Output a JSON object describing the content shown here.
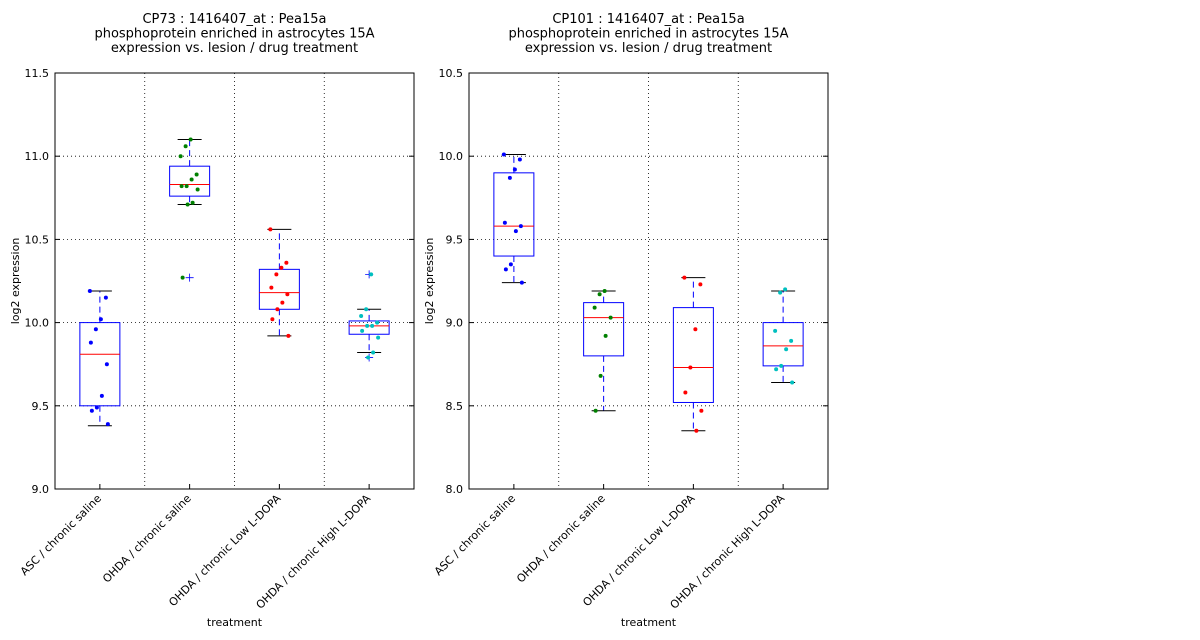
{
  "charts": [
    {
      "chart_data": {
        "type": "box",
        "title": [
          "CP73 : 1416407_at : Pea15a",
          "phosphoprotein enriched in astrocytes 15A",
          "expression vs. lesion / drug treatment"
        ],
        "xlabel": "treatment",
        "ylabel": "log2 expression",
        "categories": [
          "ASC / chronic saline",
          "OHDA / chronic saline",
          "OHDA / chronic Low L-DOPA",
          "OHDA / chronic High L-DOPA"
        ],
        "ylim": [
          9,
          11.5
        ],
        "yticks": [
          {
            "value": 9,
            "label": "9.0"
          },
          9.5,
          {
            "value": 10,
            "label": "10.0"
          },
          10.5,
          {
            "value": 11,
            "label": "11.0"
          },
          11.5
        ],
        "grid": true,
        "box_color": "#0000ff",
        "median_color": "#ff0000",
        "point_colors": [
          "#0000ff",
          "#008000",
          "#ff0000",
          "#00bfbf"
        ],
        "boxes": [
          {
            "whislo": 9.38,
            "q1": 9.5,
            "med": 9.81,
            "q3": 10.0,
            "whishi": 10.19,
            "fliers": []
          },
          {
            "whislo": 10.71,
            "q1": 10.76,
            "med": 10.83,
            "q3": 10.94,
            "whishi": 11.1,
            "fliers": [
              10.27
            ]
          },
          {
            "whislo": 9.92,
            "q1": 10.08,
            "med": 10.18,
            "q3": 10.32,
            "whishi": 10.56,
            "fliers": []
          },
          {
            "whislo": 9.82,
            "q1": 9.93,
            "med": 9.98,
            "q3": 10.01,
            "whishi": 10.08,
            "fliers": [
              10.29,
              9.79
            ]
          }
        ],
        "points": [
          [
            10.19,
            10.15,
            10.02,
            9.96,
            9.88,
            9.75,
            9.56,
            9.49,
            9.47,
            9.39
          ],
          [
            11.1,
            11.06,
            11.0,
            10.89,
            10.86,
            10.82,
            10.82,
            10.8,
            10.72,
            10.71,
            10.27
          ],
          [
            10.56,
            10.36,
            10.33,
            10.29,
            10.21,
            10.17,
            10.12,
            10.08,
            10.02,
            9.92
          ],
          [
            10.29,
            10.08,
            10.04,
            10.0,
            9.98,
            9.98,
            9.95,
            9.91,
            9.82,
            9.79
          ]
        ]
      }
    },
    {
      "chart_data": {
        "type": "box",
        "title": [
          "CP101 : 1416407_at : Pea15a",
          "phosphoprotein enriched in astrocytes 15A",
          "expression vs. lesion / drug treatment"
        ],
        "xlabel": "treatment",
        "ylabel": "log2 expression",
        "categories": [
          "ASC / chronic saline",
          "OHDA / chronic saline",
          "OHDA / chronic Low L-DOPA",
          "OHDA / chronic High L-DOPA"
        ],
        "ylim": [
          8,
          10.5
        ],
        "yticks": [
          {
            "value": 8,
            "label": "8.0"
          },
          8.5,
          {
            "value": 9,
            "label": "9.0"
          },
          9.5,
          {
            "value": 10,
            "label": "10.0"
          },
          10.5
        ],
        "grid": true,
        "box_color": "#0000ff",
        "median_color": "#ff0000",
        "point_colors": [
          "#0000ff",
          "#008000",
          "#ff0000",
          "#00bfbf"
        ],
        "boxes": [
          {
            "whislo": 9.24,
            "q1": 9.4,
            "med": 9.58,
            "q3": 9.9,
            "whishi": 10.01,
            "fliers": []
          },
          {
            "whislo": 8.47,
            "q1": 8.8,
            "med": 9.03,
            "q3": 9.12,
            "whishi": 9.19,
            "fliers": []
          },
          {
            "whislo": 8.35,
            "q1": 8.52,
            "med": 8.73,
            "q3": 9.09,
            "whishi": 9.27,
            "fliers": []
          },
          {
            "whislo": 8.64,
            "q1": 8.74,
            "med": 8.86,
            "q3": 9.0,
            "whishi": 9.19,
            "fliers": []
          }
        ],
        "points": [
          [
            10.01,
            9.98,
            9.92,
            9.87,
            9.6,
            9.58,
            9.55,
            9.35,
            9.32,
            9.24
          ],
          [
            9.19,
            9.17,
            9.09,
            9.03,
            8.92,
            8.68,
            8.47
          ],
          [
            9.27,
            9.23,
            8.96,
            8.73,
            8.58,
            8.47,
            8.35
          ],
          [
            9.2,
            9.18,
            8.95,
            8.89,
            8.84,
            8.74,
            8.72,
            8.64
          ]
        ]
      }
    }
  ]
}
